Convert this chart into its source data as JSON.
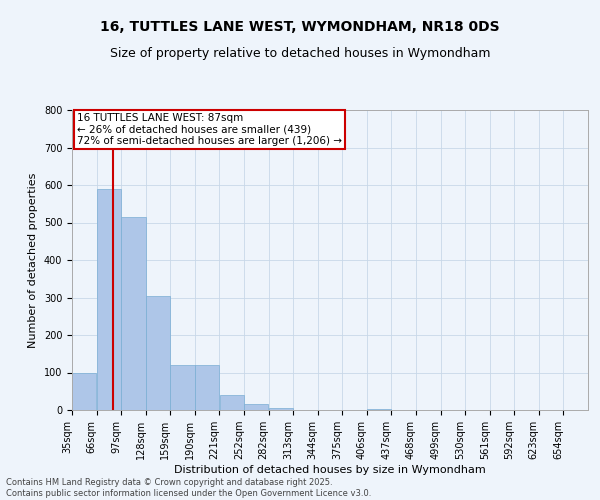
{
  "title_line1": "16, TUTTLES LANE WEST, WYMONDHAM, NR18 0DS",
  "title_line2": "Size of property relative to detached houses in Wymondham",
  "xlabel": "Distribution of detached houses by size in Wymondham",
  "ylabel": "Number of detached properties",
  "categories": [
    "35sqm",
    "66sqm",
    "97sqm",
    "128sqm",
    "159sqm",
    "190sqm",
    "221sqm",
    "252sqm",
    "282sqm",
    "313sqm",
    "344sqm",
    "375sqm",
    "406sqm",
    "437sqm",
    "468sqm",
    "499sqm",
    "530sqm",
    "561sqm",
    "592sqm",
    "623sqm",
    "654sqm"
  ],
  "values": [
    100,
    590,
    515,
    305,
    120,
    120,
    40,
    15,
    5,
    0,
    0,
    0,
    3,
    0,
    0,
    0,
    0,
    0,
    0,
    0,
    0
  ],
  "bar_color": "#aec6e8",
  "bar_edge_color": "#7aaed4",
  "grid_color": "#c8d8e8",
  "background_color": "#eef4fb",
  "vline_color": "#cc0000",
  "property_size": 87,
  "annotation_line1": "16 TUTTLES LANE WEST: 87sqm",
  "annotation_line2": "← 26% of detached houses are smaller (439)",
  "annotation_line3": "72% of semi-detached houses are larger (1,206) →",
  "ylim": [
    0,
    800
  ],
  "yticks": [
    0,
    100,
    200,
    300,
    400,
    500,
    600,
    700,
    800
  ],
  "footer_line1": "Contains HM Land Registry data © Crown copyright and database right 2025.",
  "footer_line2": "Contains public sector information licensed under the Open Government Licence v3.0.",
  "title_fontsize": 10,
  "subtitle_fontsize": 9,
  "axis_label_fontsize": 8,
  "tick_fontsize": 7,
  "annotation_fontsize": 7.5,
  "footer_fontsize": 6,
  "bin_width": 31
}
